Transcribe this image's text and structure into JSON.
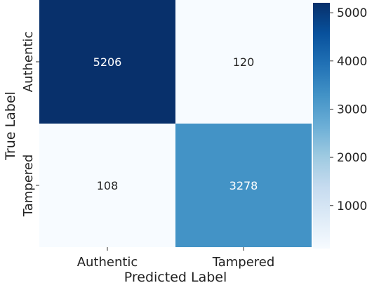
{
  "chart_data": {
    "type": "heatmap",
    "title": "",
    "xlabel": "Predicted Label",
    "ylabel": "True Label",
    "x_categories": [
      "Authentic",
      "Tampered"
    ],
    "y_categories": [
      "Authentic",
      "Tampered"
    ],
    "values": [
      [
        5206,
        120
      ],
      [
        108,
        3278
      ]
    ],
    "cell_labels": [
      [
        "5206",
        "120"
      ],
      [
        "108",
        "3278"
      ]
    ],
    "colorbar": {
      "ticks": [
        "1000",
        "2000",
        "3000",
        "4000",
        "5000"
      ],
      "range": [
        108,
        5206
      ],
      "colormap": "Blues",
      "colors": [
        "#f7fbff",
        "#deebf7",
        "#c6dbef",
        "#9ecae1",
        "#6baed6",
        "#4292c6",
        "#2171b5",
        "#08519c",
        "#08306b"
      ]
    },
    "grid": false
  }
}
